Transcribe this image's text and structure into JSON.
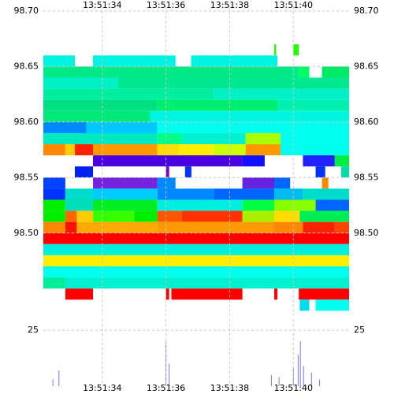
{
  "chart_data": [
    {
      "type": "heatmap",
      "xlim": [
        32.15,
        41.75
      ],
      "ylim": [
        98.426,
        98.704
      ],
      "xticks": [
        {
          "value": 34,
          "label": "13:51:34"
        },
        {
          "value": 36,
          "label": "13:51:36"
        },
        {
          "value": 38,
          "label": "13:51:38"
        },
        {
          "value": 40,
          "label": "13:51:40"
        }
      ],
      "yticks": [
        {
          "value": 98.7,
          "label": "98.70"
        },
        98.65,
        {
          "value": 98.6,
          "label": "98.60"
        },
        98.55,
        {
          "value": 98.5,
          "label": "98.50"
        }
      ],
      "row_height": 0.01,
      "grid": true,
      "rows": [
        {
          "price": 98.665,
          "segments": [
            [
              39.4,
              39.46,
              "#22ff00"
            ],
            [
              40.0,
              40.17,
              "#22ff00"
            ]
          ]
        },
        {
          "price": 98.655,
          "segments": [
            [
              32.15,
              33.14,
              "#00f2e2"
            ],
            [
              33.71,
              36.3,
              "#00f2e2"
            ],
            [
              36.79,
              39.5,
              "#00f2e2"
            ]
          ]
        },
        {
          "price": 98.645,
          "segments": [
            [
              32.15,
              40.17,
              "#00ea88"
            ],
            [
              40.17,
              40.5,
              "#00ff66"
            ],
            [
              40.9,
              41.75,
              "#00ea66"
            ]
          ]
        },
        {
          "price": 98.635,
          "segments": [
            [
              32.15,
              34.5,
              "#00f0c8"
            ],
            [
              34.5,
              41.75,
              "#00e890"
            ]
          ]
        },
        {
          "price": 98.625,
          "segments": [
            [
              32.15,
              37.5,
              "#00eea0"
            ],
            [
              37.5,
              41.75,
              "#00f0c8"
            ]
          ]
        },
        {
          "price": 98.615,
          "segments": [
            [
              32.15,
              35.73,
              "#00e080"
            ],
            [
              35.73,
              39.5,
              "#00ee70"
            ],
            [
              39.5,
              41.75,
              "#00f0b0"
            ]
          ]
        },
        {
          "price": 98.605,
          "segments": [
            [
              32.15,
              35.5,
              "#00e878"
            ],
            [
              35.5,
              41.75,
              "#00f5e0"
            ]
          ]
        },
        {
          "price": 98.595,
          "segments": [
            [
              32.15,
              33.5,
              "#0088ff"
            ],
            [
              33.5,
              35.73,
              "#00c8ff"
            ],
            [
              35.73,
              41.75,
              "#00ffee"
            ]
          ]
        },
        {
          "price": 98.585,
          "segments": [
            [
              32.15,
              35.73,
              "#00e8c0"
            ],
            [
              35.73,
              36.5,
              "#00ff88"
            ],
            [
              36.5,
              38.5,
              "#00f0d0"
            ],
            [
              38.5,
              39.6,
              "#aaff00"
            ],
            [
              39.6,
              41.75,
              "#00ffee"
            ]
          ]
        },
        {
          "price": 98.575,
          "segments": [
            [
              32.15,
              32.84,
              "#ff8800"
            ],
            [
              32.84,
              33.14,
              "#ffcc00"
            ],
            [
              33.14,
              33.71,
              "#ff2200"
            ],
            [
              33.71,
              35.73,
              "#ff9900"
            ],
            [
              35.73,
              36.4,
              "#ffdd00"
            ],
            [
              36.4,
              37.5,
              "#ffee00"
            ],
            [
              37.5,
              38.5,
              "#ccff00"
            ],
            [
              38.5,
              39.6,
              "#ff9900"
            ],
            [
              39.6,
              41.75,
              "#00ffee"
            ]
          ]
        },
        {
          "price": 98.565,
          "segments": [
            [
              33.71,
              38.4,
              "#4a00e0"
            ],
            [
              38.4,
              39.1,
              "#1010ff"
            ],
            [
              40.3,
              41.3,
              "#2222ff"
            ],
            [
              41.3,
              41.75,
              "#00ee44"
            ]
          ]
        },
        {
          "price": 98.555,
          "segments": [
            [
              33.14,
              33.71,
              "#0022ee"
            ],
            [
              36.0,
              36.1,
              "#7700cc"
            ],
            [
              36.6,
              36.8,
              "#0033ff"
            ],
            [
              40.7,
              41.0,
              "#0033ff"
            ],
            [
              41.5,
              41.75,
              "#00ddaa"
            ]
          ]
        },
        {
          "price": 98.545,
          "segments": [
            [
              32.15,
              32.84,
              "#0044ff"
            ],
            [
              33.71,
              35.73,
              "#7722dd"
            ],
            [
              35.73,
              36.3,
              "#0088ff"
            ],
            [
              38.4,
              39.4,
              "#6622dd"
            ],
            [
              39.4,
              39.9,
              "#0066ff"
            ],
            [
              40.9,
              41.1,
              "#ff8800"
            ]
          ]
        },
        {
          "price": 98.535,
          "segments": [
            [
              32.15,
              32.84,
              "#0033ff"
            ],
            [
              32.84,
              33.71,
              "#00ddcc"
            ],
            [
              33.71,
              35.73,
              "#00ccff"
            ],
            [
              35.73,
              37.5,
              "#0088ff"
            ],
            [
              37.5,
              39.4,
              "#0066ff"
            ],
            [
              39.4,
              40.3,
              "#00bbee"
            ],
            [
              40.3,
              41.75,
              "#00ddcc"
            ]
          ]
        },
        {
          "price": 98.525,
          "segments": [
            [
              32.15,
              32.84,
              "#00ee00"
            ],
            [
              32.84,
              33.71,
              "#00ddbb"
            ],
            [
              33.71,
              35.73,
              "#00ee22"
            ],
            [
              35.73,
              38.4,
              "#00eedd"
            ],
            [
              38.4,
              39.4,
              "#00ff44"
            ],
            [
              39.4,
              40.7,
              "#88ff00"
            ],
            [
              40.7,
              41.75,
              "#0066ff"
            ]
          ]
        },
        {
          "price": 98.515,
          "segments": [
            [
              32.15,
              32.84,
              "#00ee00"
            ],
            [
              32.84,
              33.2,
              "#ff6600"
            ],
            [
              33.2,
              33.71,
              "#ffcc00"
            ],
            [
              33.71,
              35.0,
              "#33ff00"
            ],
            [
              35.0,
              35.73,
              "#00ee00"
            ],
            [
              35.73,
              36.5,
              "#ff5500"
            ],
            [
              36.5,
              38.4,
              "#ff3300"
            ],
            [
              38.4,
              39.4,
              "#aaee00"
            ],
            [
              39.4,
              40.2,
              "#ffdd00"
            ],
            [
              40.2,
              41.75,
              "#00ee55"
            ]
          ]
        },
        {
          "price": 98.505,
          "segments": [
            [
              32.15,
              32.84,
              "#ff8800"
            ],
            [
              32.84,
              33.2,
              "#ff1100"
            ],
            [
              33.2,
              35.73,
              "#ffaa00"
            ],
            [
              35.73,
              39.4,
              "#ff9900"
            ],
            [
              39.4,
              40.3,
              "#ff8800"
            ],
            [
              40.3,
              41.3,
              "#ff2200"
            ],
            [
              41.3,
              41.75,
              "#ff4400"
            ]
          ]
        },
        {
          "price": 98.495,
          "segments": [
            [
              32.15,
              41.75,
              "#ff0000"
            ]
          ]
        },
        {
          "price": 98.485,
          "segments": [
            [
              32.15,
              41.75,
              "#00f0e0"
            ]
          ]
        },
        {
          "price": 98.475,
          "segments": [
            [
              32.15,
              41.75,
              "#ffee00"
            ]
          ]
        },
        {
          "price": 98.465,
          "segments": [
            [
              32.15,
              41.75,
              "#00ffee"
            ]
          ]
        },
        {
          "price": 98.455,
          "segments": [
            [
              32.15,
              32.84,
              "#00ee99"
            ],
            [
              32.84,
              41.75,
              "#00f0d0"
            ]
          ]
        },
        {
          "price": 98.445,
          "segments": [
            [
              32.84,
              33.71,
              "#ff0000"
            ],
            [
              36.0,
              36.1,
              "#ff0000"
            ],
            [
              36.17,
              38.4,
              "#ff0000"
            ],
            [
              39.4,
              39.5,
              "#ff0000"
            ],
            [
              40.17,
              41.75,
              "#ff0000"
            ]
          ]
        },
        {
          "price": 98.435,
          "segments": [
            [
              40.2,
              40.5,
              "#00ddee"
            ],
            [
              40.7,
              41.75,
              "#00ffee"
            ]
          ]
        }
      ]
    },
    {
      "type": "bar",
      "xlim": [
        32.15,
        41.75
      ],
      "ylim": [
        0,
        30
      ],
      "xticks": [
        {
          "value": 34,
          "label": "13:51:34"
        },
        {
          "value": 36,
          "label": "13:51:36"
        },
        {
          "value": 38,
          "label": "13:51:38"
        },
        {
          "value": 40,
          "label": "13:51:40"
        }
      ],
      "yticks": [
        25
      ],
      "grid": true,
      "color": "#7777ee",
      "x": [
        32.45,
        32.64,
        36.0,
        36.1,
        39.31,
        39.55,
        40.0,
        40.15,
        40.22,
        40.32,
        40.57,
        40.82
      ],
      "values": [
        3,
        7,
        20,
        10,
        5,
        4,
        8,
        14,
        20,
        9,
        6,
        3
      ]
    }
  ]
}
